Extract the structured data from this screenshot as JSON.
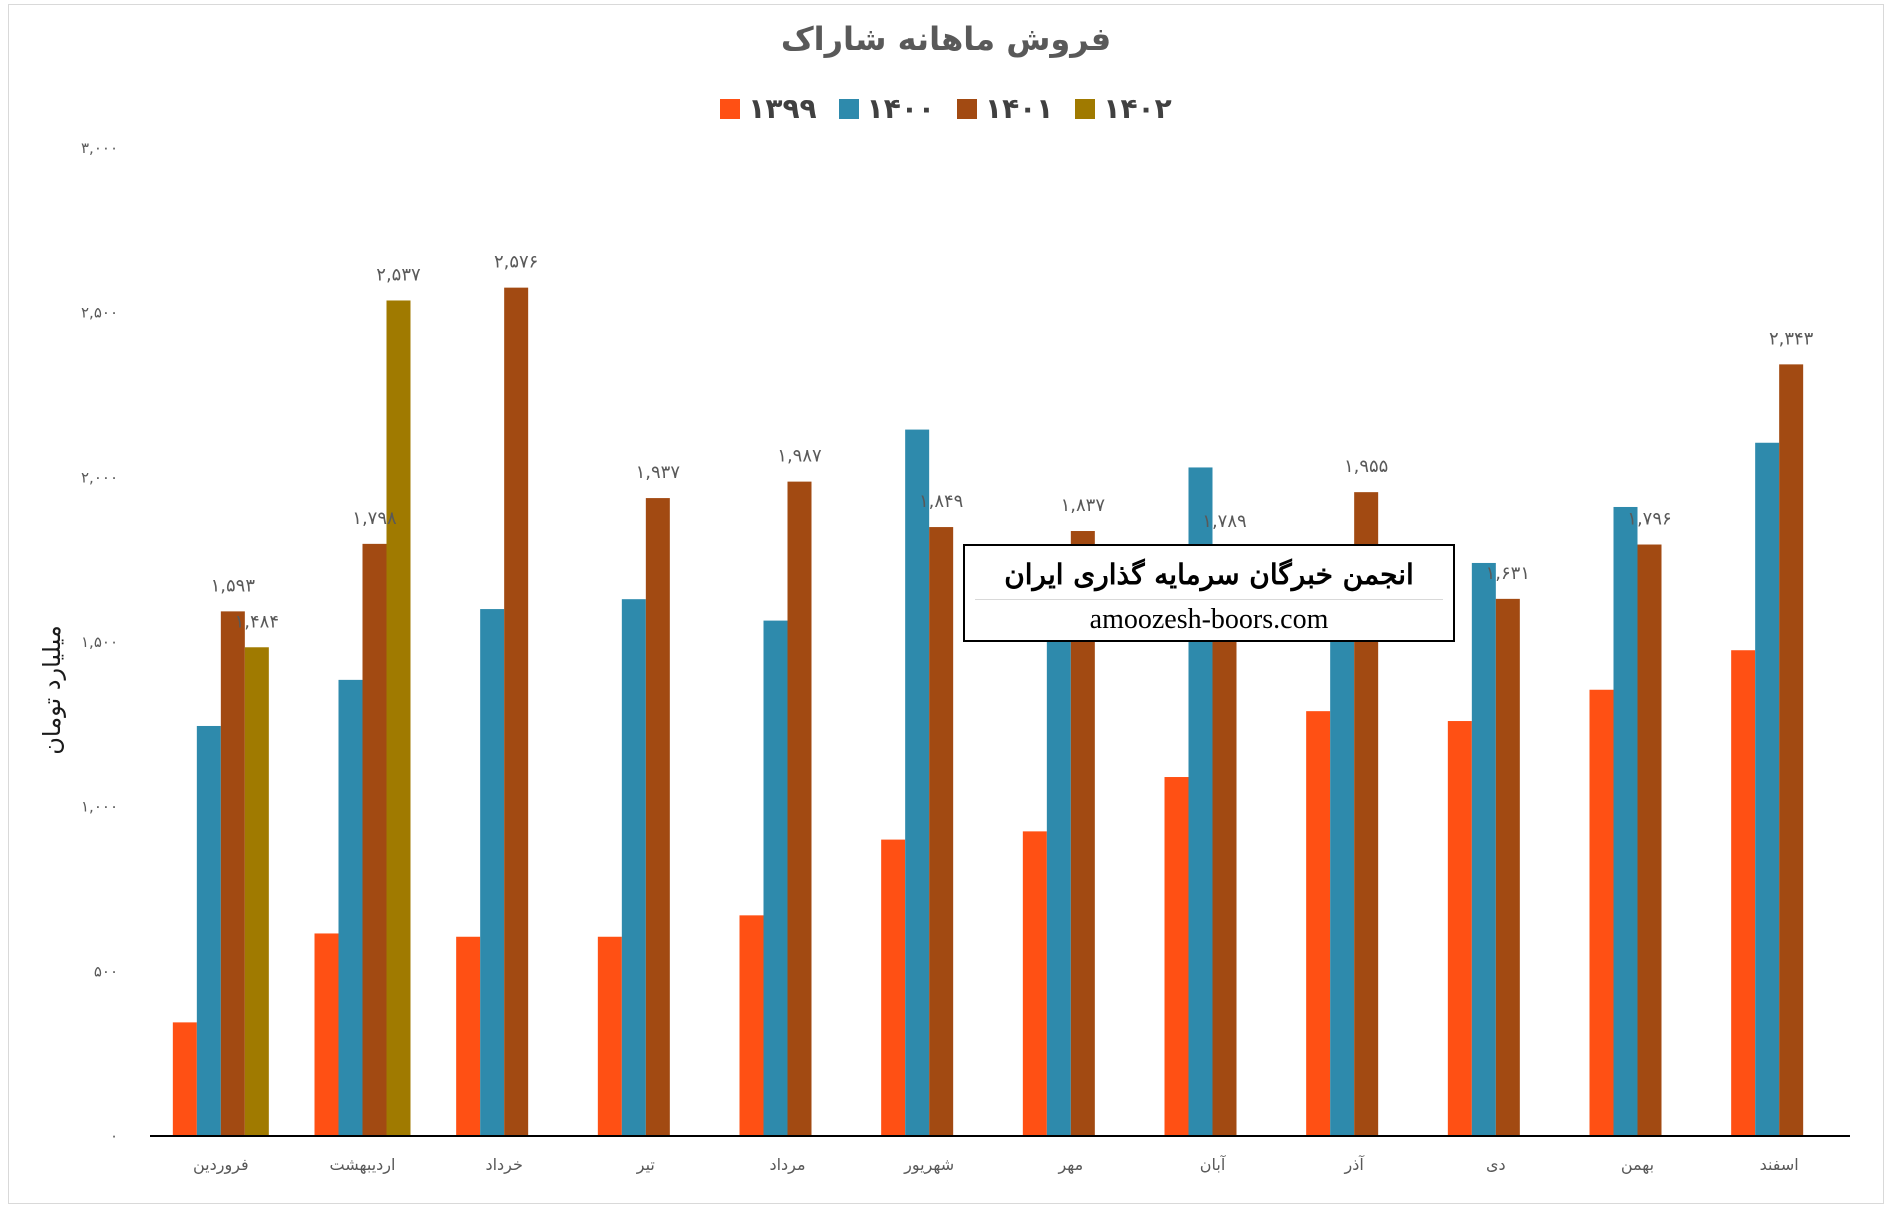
{
  "chart_data": {
    "type": "bar",
    "title": "فروش ماهانه شاراک",
    "ylabel": "میلیارد تومان",
    "xlabel": "",
    "ylim": [
      0,
      3000
    ],
    "yticks": [
      0,
      500,
      1000,
      1500,
      2000,
      2500,
      3000
    ],
    "ytick_labels": [
      "۰",
      "۵۰۰",
      "۱,۰۰۰",
      "۱,۵۰۰",
      "۲,۰۰۰",
      "۲,۵۰۰",
      "۳,۰۰۰"
    ],
    "legend_position": "top",
    "categories": [
      "فروردین",
      "اردیبهشت",
      "خرداد",
      "تیر",
      "مرداد",
      "شهریور",
      "مهر",
      "آبان",
      "آذر",
      "دی",
      "بهمن",
      "اسفند"
    ],
    "series": [
      {
        "name": "۱۳۹۹",
        "color": "#ff5014",
        "values": [
          345,
          615,
          605,
          605,
          670,
          900,
          925,
          1090,
          1290,
          1260,
          1355,
          1475
        ]
      },
      {
        "name": "۱۴۰۰",
        "color": "#2e8aac",
        "values": [
          1245,
          1385,
          1600,
          1630,
          1565,
          2145,
          1545,
          2030,
          1540,
          1740,
          1910,
          2105
        ]
      },
      {
        "name": "۱۴۰۱",
        "color": "#a24a12",
        "values": [
          1593,
          1798,
          2576,
          1937,
          1987,
          1849,
          1837,
          1789,
          1955,
          1631,
          1796,
          2343
        ]
      },
      {
        "name": "۱۴۰۲",
        "color": "#a07a00",
        "values": [
          1484,
          2537,
          null,
          null,
          null,
          null,
          null,
          null,
          null,
          null,
          null,
          null
        ]
      }
    ],
    "data_labels": [
      {
        "series": 2,
        "category": 0,
        "text": "۱,۵۹۳"
      },
      {
        "series": 3,
        "category": 0,
        "text": "۱,۴۸۴"
      },
      {
        "series": 2,
        "category": 1,
        "text": "۱,۷۹۸"
      },
      {
        "series": 3,
        "category": 1,
        "text": "۲,۵۳۷"
      },
      {
        "series": 2,
        "category": 2,
        "text": "۲,۵۷۶"
      },
      {
        "series": 2,
        "category": 3,
        "text": "۱,۹۳۷"
      },
      {
        "series": 2,
        "category": 4,
        "text": "۱,۹۸۷"
      },
      {
        "series": 2,
        "category": 5,
        "text": "۱,۸۴۹"
      },
      {
        "series": 2,
        "category": 6,
        "text": "۱,۸۳۷"
      },
      {
        "series": 2,
        "category": 7,
        "text": "۱,۷۸۹"
      },
      {
        "series": 2,
        "category": 8,
        "text": "۱,۹۵۵"
      },
      {
        "series": 2,
        "category": 9,
        "text": "۱,۶۳۱"
      },
      {
        "series": 2,
        "category": 10,
        "text": "۱,۷۹۶"
      },
      {
        "series": 2,
        "category": 11,
        "text": "۲,۳۴۳"
      }
    ]
  },
  "watermark": {
    "title": "انجمن خبرگان سرمایه گذاری ایران",
    "url": "amoozesh-boors.com"
  }
}
